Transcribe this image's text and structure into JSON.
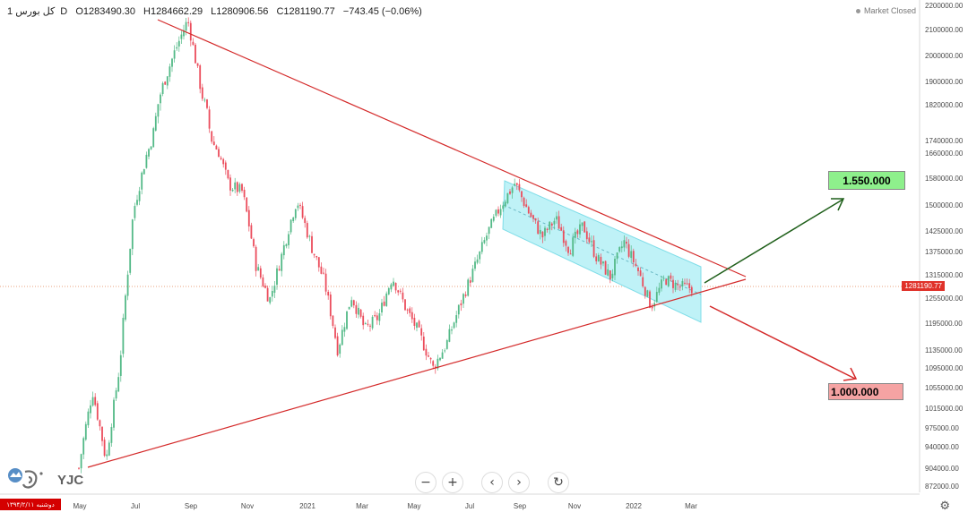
{
  "header": {
    "symbol": "کل بورس",
    "interval": "1D",
    "open": "O1283490.30",
    "high": "H1284662.29",
    "low": "L1280906.56",
    "close": "C1281190.77",
    "change": "−743.45 (−0.06%)"
  },
  "status": {
    "label": "Market Closed"
  },
  "price_tag": "1281190.77",
  "targets": {
    "up": "1.550.000",
    "down": "1.000.000"
  },
  "toolbar": {
    "zoom_out": "−",
    "zoom_in": "+",
    "prev": "‹",
    "next": "›",
    "reset": "↻"
  },
  "settings_icon": "⚙",
  "watermark": {
    "text": "YJC",
    "icon": "yjc-logo-icon"
  },
  "date_badge": "دوشنبه ۱۳۹۴/۲/۱۱",
  "colors": {
    "up_candle": "#53b987",
    "down_candle": "#eb4d5c",
    "trendline": "#d42a2a",
    "channel_fill": "#bff2f7",
    "green_arrow": "#1f5f1a",
    "red_arrow": "#d42a2a",
    "target_up_bg": "#8ef08c",
    "target_down_bg": "#f5a3a3"
  },
  "chart_data": {
    "type": "candlestick",
    "grid": false,
    "y_axis": {
      "position": "right",
      "ticks": [
        "2200000.00",
        "2100000.00",
        "2000000.00",
        "1900000.00",
        "1820000.00",
        "1740000.00",
        "1660000.00",
        "1580000.00",
        "1500000.00",
        "1425000.00",
        "1375000.00",
        "1315000.00",
        "1255000.00",
        "1195000.00",
        "1135000.00",
        "1095000.00",
        "1055000.00",
        "1015000.00",
        "975000.00",
        "940000.00",
        "904000.00",
        "872000.00"
      ]
    },
    "x_axis": {
      "ticks": [
        "May",
        "Jul",
        "Sep",
        "Nov",
        "2021",
        "Mar",
        "May",
        "Jul",
        "Sep",
        "Nov",
        "2022",
        "Mar"
      ]
    },
    "close_series": [
      {
        "date": "May",
        "close": 904000
      },
      {
        "date": "May",
        "close": 1050000
      },
      {
        "date": "May",
        "close": 915000
      },
      {
        "date": "Jun",
        "close": 1100000
      },
      {
        "date": "Jun",
        "close": 1480000
      },
      {
        "date": "Jul",
        "close": 1660000
      },
      {
        "date": "Jul",
        "close": 1860000
      },
      {
        "date": "Aug",
        "close": 2010000
      },
      {
        "date": "Aug",
        "close": 2140000
      },
      {
        "date": "Aug",
        "close": 1860000
      },
      {
        "date": "Sep",
        "close": 1700000
      },
      {
        "date": "Sep",
        "close": 1560000
      },
      {
        "date": "Oct",
        "close": 1540000
      },
      {
        "date": "Oct",
        "close": 1340000
      },
      {
        "date": "Nov",
        "close": 1250000
      },
      {
        "date": "Nov",
        "close": 1380000
      },
      {
        "date": "Dec",
        "close": 1515000
      },
      {
        "date": "Dec",
        "close": 1395000
      },
      {
        "date": "2021",
        "close": 1300000
      },
      {
        "date": "Jan",
        "close": 1135000
      },
      {
        "date": "Feb",
        "close": 1260000
      },
      {
        "date": "Feb",
        "close": 1180000
      },
      {
        "date": "Mar",
        "close": 1210000
      },
      {
        "date": "Apr",
        "close": 1310000
      },
      {
        "date": "Apr",
        "close": 1230000
      },
      {
        "date": "May",
        "close": 1170000
      },
      {
        "date": "May",
        "close": 1095000
      },
      {
        "date": "Jun",
        "close": 1150000
      },
      {
        "date": "Jun",
        "close": 1240000
      },
      {
        "date": "Jul",
        "close": 1330000
      },
      {
        "date": "Jul",
        "close": 1420000
      },
      {
        "date": "Aug",
        "close": 1500000
      },
      {
        "date": "Aug",
        "close": 1565000
      },
      {
        "date": "Sep",
        "close": 1480000
      },
      {
        "date": "Sep",
        "close": 1410000
      },
      {
        "date": "Oct",
        "close": 1460000
      },
      {
        "date": "Oct",
        "close": 1380000
      },
      {
        "date": "Nov",
        "close": 1440000
      },
      {
        "date": "Nov",
        "close": 1360000
      },
      {
        "date": "Dec",
        "close": 1310000
      },
      {
        "date": "Dec",
        "close": 1400000
      },
      {
        "date": "Jan",
        "close": 1330000
      },
      {
        "date": "Jan",
        "close": 1235000
      },
      {
        "date": "Feb",
        "close": 1305000
      },
      {
        "date": "Feb",
        "close": 1285000
      },
      {
        "date": "Mar",
        "close": 1281190.77
      }
    ],
    "annotations": [
      {
        "type": "descending_trendline",
        "from": "2100000 (Aug 2020)",
        "to": "~1315000 (Mar 2022)"
      },
      {
        "type": "ascending_trendline",
        "from": "904000 (May 2020)",
        "to": "~1315000 (Mar 2022)"
      },
      {
        "type": "descending_channel",
        "range": "Aug 2021 to Mar 2022"
      },
      {
        "type": "arrow_target",
        "direction": "up",
        "label": "1.550.000"
      },
      {
        "type": "arrow_target",
        "direction": "down",
        "label": "1.000.000"
      }
    ]
  }
}
